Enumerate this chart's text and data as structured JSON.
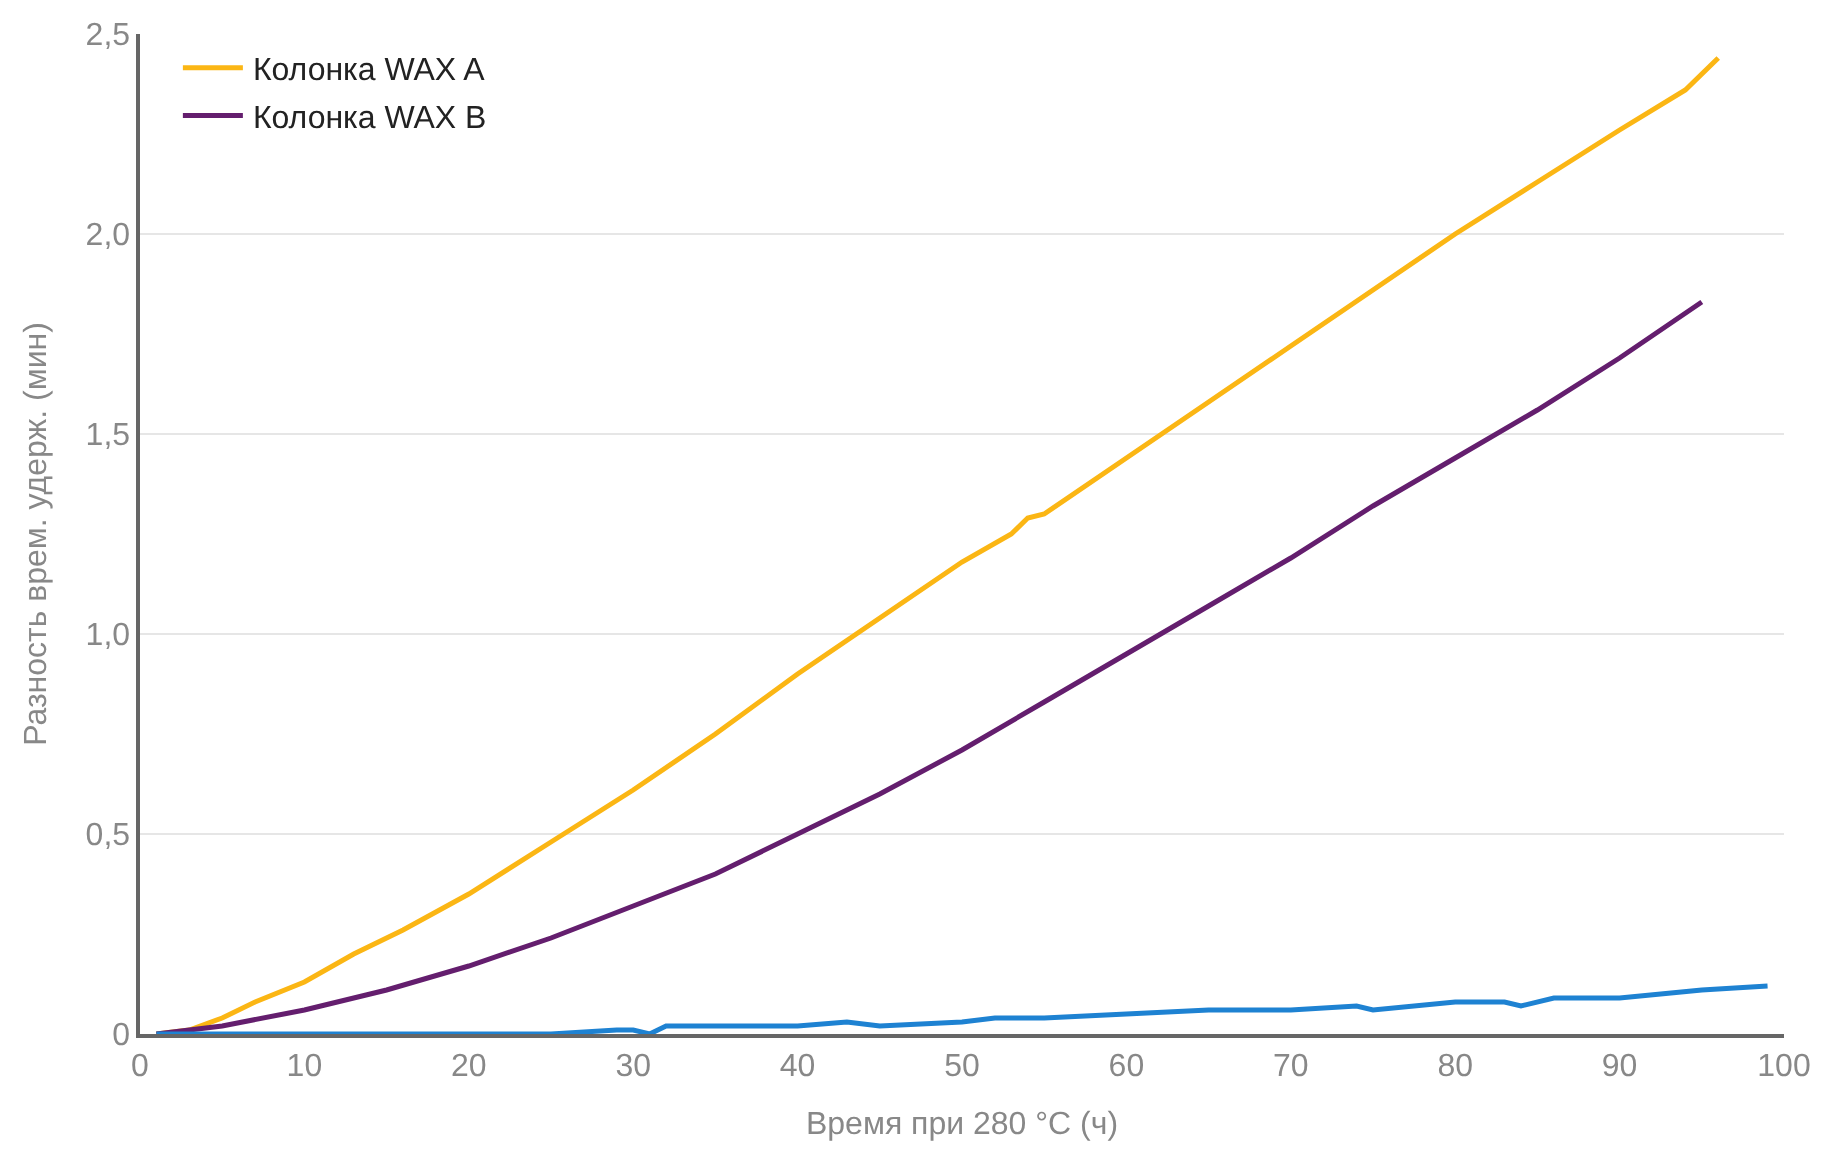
{
  "chart_data": {
    "type": "line",
    "xlabel": "Время при 280 °C (ч)",
    "ylabel": "Разность врем. удерж. (мин)",
    "xlim": [
      0,
      100
    ],
    "xticks": [
      0,
      10,
      20,
      30,
      40,
      50,
      60,
      70,
      80,
      90,
      100
    ],
    "ylim": [
      0,
      2.5
    ],
    "yticks": [
      0,
      {
        "value": 0.5,
        "label": "0,5"
      },
      {
        "value": 1.0,
        "label": "1,0"
      },
      {
        "value": 1.5,
        "label": "1,5"
      },
      {
        "value": 2.0,
        "label": "2,0"
      },
      {
        "value": 2.5,
        "label": "2,5"
      }
    ],
    "grid": "y",
    "legend": "top left",
    "marker": "none",
    "line_style": "solid",
    "series": [
      {
        "name": "Колонка WAX A",
        "color": "#fbb614",
        "x": [
          1,
          3,
          5,
          7,
          10,
          13,
          16,
          20,
          25,
          30,
          35,
          40,
          45,
          50,
          53,
          54,
          55,
          60,
          65,
          70,
          75,
          80,
          85,
          90,
          94,
          96
        ],
        "values": [
          0,
          0.01,
          0.04,
          0.08,
          0.13,
          0.2,
          0.26,
          0.35,
          0.48,
          0.61,
          0.75,
          0.9,
          1.04,
          1.18,
          1.25,
          1.29,
          1.3,
          1.44,
          1.58,
          1.72,
          1.86,
          2.0,
          2.13,
          2.26,
          2.36,
          2.44
        ]
      },
      {
        "name": "Колонка WAX B",
        "color": "#641e6e",
        "x": [
          1,
          5,
          10,
          15,
          20,
          25,
          30,
          35,
          40,
          45,
          50,
          55,
          60,
          65,
          70,
          75,
          80,
          85,
          90,
          95
        ],
        "values": [
          0,
          0.02,
          0.06,
          0.11,
          0.17,
          0.24,
          0.32,
          0.4,
          0.5,
          0.6,
          0.71,
          0.83,
          0.95,
          1.07,
          1.19,
          1.32,
          1.44,
          1.56,
          1.69,
          1.83
        ]
      },
      {
        "color": "#1e82d2",
        "x": [
          1,
          5,
          10,
          15,
          20,
          25,
          29,
          30,
          31,
          32,
          35,
          40,
          43,
          45,
          50,
          52,
          55,
          60,
          65,
          70,
          74,
          75,
          80,
          83,
          84,
          86,
          90,
          95,
          99
        ],
        "values": [
          0,
          0,
          0,
          0,
          0,
          0,
          0.01,
          0.01,
          0,
          0.02,
          0.02,
          0.02,
          0.03,
          0.02,
          0.03,
          0.04,
          0.04,
          0.05,
          0.06,
          0.06,
          0.07,
          0.06,
          0.08,
          0.08,
          0.07,
          0.09,
          0.09,
          0.11,
          0.12
        ]
      }
    ]
  }
}
